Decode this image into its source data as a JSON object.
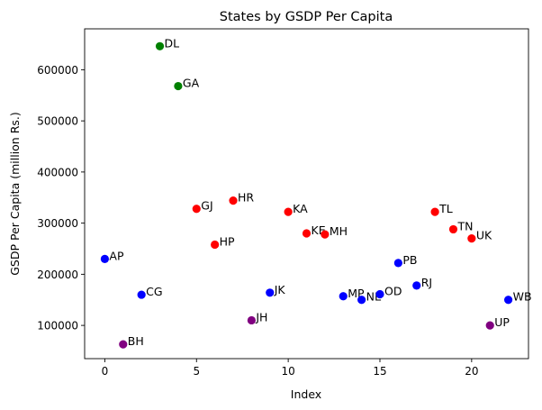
{
  "chart_data": {
    "type": "scatter",
    "title": "States by GSDP Per Capita",
    "xlabel": "Index",
    "ylabel": "GSDP Per Capita (million Rs.)",
    "xlim": [
      -1.1,
      23.1
    ],
    "ylim": [
      35000,
      680000
    ],
    "xticks": [
      0,
      5,
      10,
      15,
      20
    ],
    "yticks": [
      100000,
      200000,
      300000,
      400000,
      500000,
      600000
    ],
    "grid": false,
    "colors": {
      "red": "#ff0000",
      "blue": "#0000ff",
      "green": "#008000",
      "purple": "#800080"
    },
    "points": [
      {
        "label": "AP",
        "x": 0,
        "y": 230000,
        "color": "#0000ff"
      },
      {
        "label": "BH",
        "x": 1,
        "y": 63000,
        "color": "#800080"
      },
      {
        "label": "CG",
        "x": 2,
        "y": 160000,
        "color": "#0000ff"
      },
      {
        "label": "DL",
        "x": 3,
        "y": 646000,
        "color": "#008000"
      },
      {
        "label": "GA",
        "x": 4,
        "y": 568000,
        "color": "#008000"
      },
      {
        "label": "GJ",
        "x": 5,
        "y": 328000,
        "color": "#ff0000"
      },
      {
        "label": "HP",
        "x": 6,
        "y": 258000,
        "color": "#ff0000"
      },
      {
        "label": "HR",
        "x": 7,
        "y": 344000,
        "color": "#ff0000"
      },
      {
        "label": "JH",
        "x": 8,
        "y": 110000,
        "color": "#800080"
      },
      {
        "label": "JK",
        "x": 9,
        "y": 164000,
        "color": "#0000ff"
      },
      {
        "label": "KA",
        "x": 10,
        "y": 322000,
        "color": "#ff0000"
      },
      {
        "label": "KE",
        "x": 11,
        "y": 280000,
        "color": "#ff0000"
      },
      {
        "label": "MH",
        "x": 12,
        "y": 278000,
        "color": "#ff0000"
      },
      {
        "label": "MP",
        "x": 13,
        "y": 157000,
        "color": "#0000ff"
      },
      {
        "label": "NE",
        "x": 14,
        "y": 150000,
        "color": "#0000ff"
      },
      {
        "label": "OD",
        "x": 15,
        "y": 161000,
        "color": "#0000ff"
      },
      {
        "label": "PB",
        "x": 16,
        "y": 222000,
        "color": "#0000ff"
      },
      {
        "label": "RJ",
        "x": 17,
        "y": 178000,
        "color": "#0000ff"
      },
      {
        "label": "TL",
        "x": 18,
        "y": 322000,
        "color": "#ff0000"
      },
      {
        "label": "TN",
        "x": 19,
        "y": 288000,
        "color": "#ff0000"
      },
      {
        "label": "UK",
        "x": 20,
        "y": 270000,
        "color": "#ff0000"
      },
      {
        "label": "UP",
        "x": 21,
        "y": 100000,
        "color": "#800080"
      },
      {
        "label": "WB",
        "x": 22,
        "y": 150000,
        "color": "#0000ff"
      }
    ]
  }
}
